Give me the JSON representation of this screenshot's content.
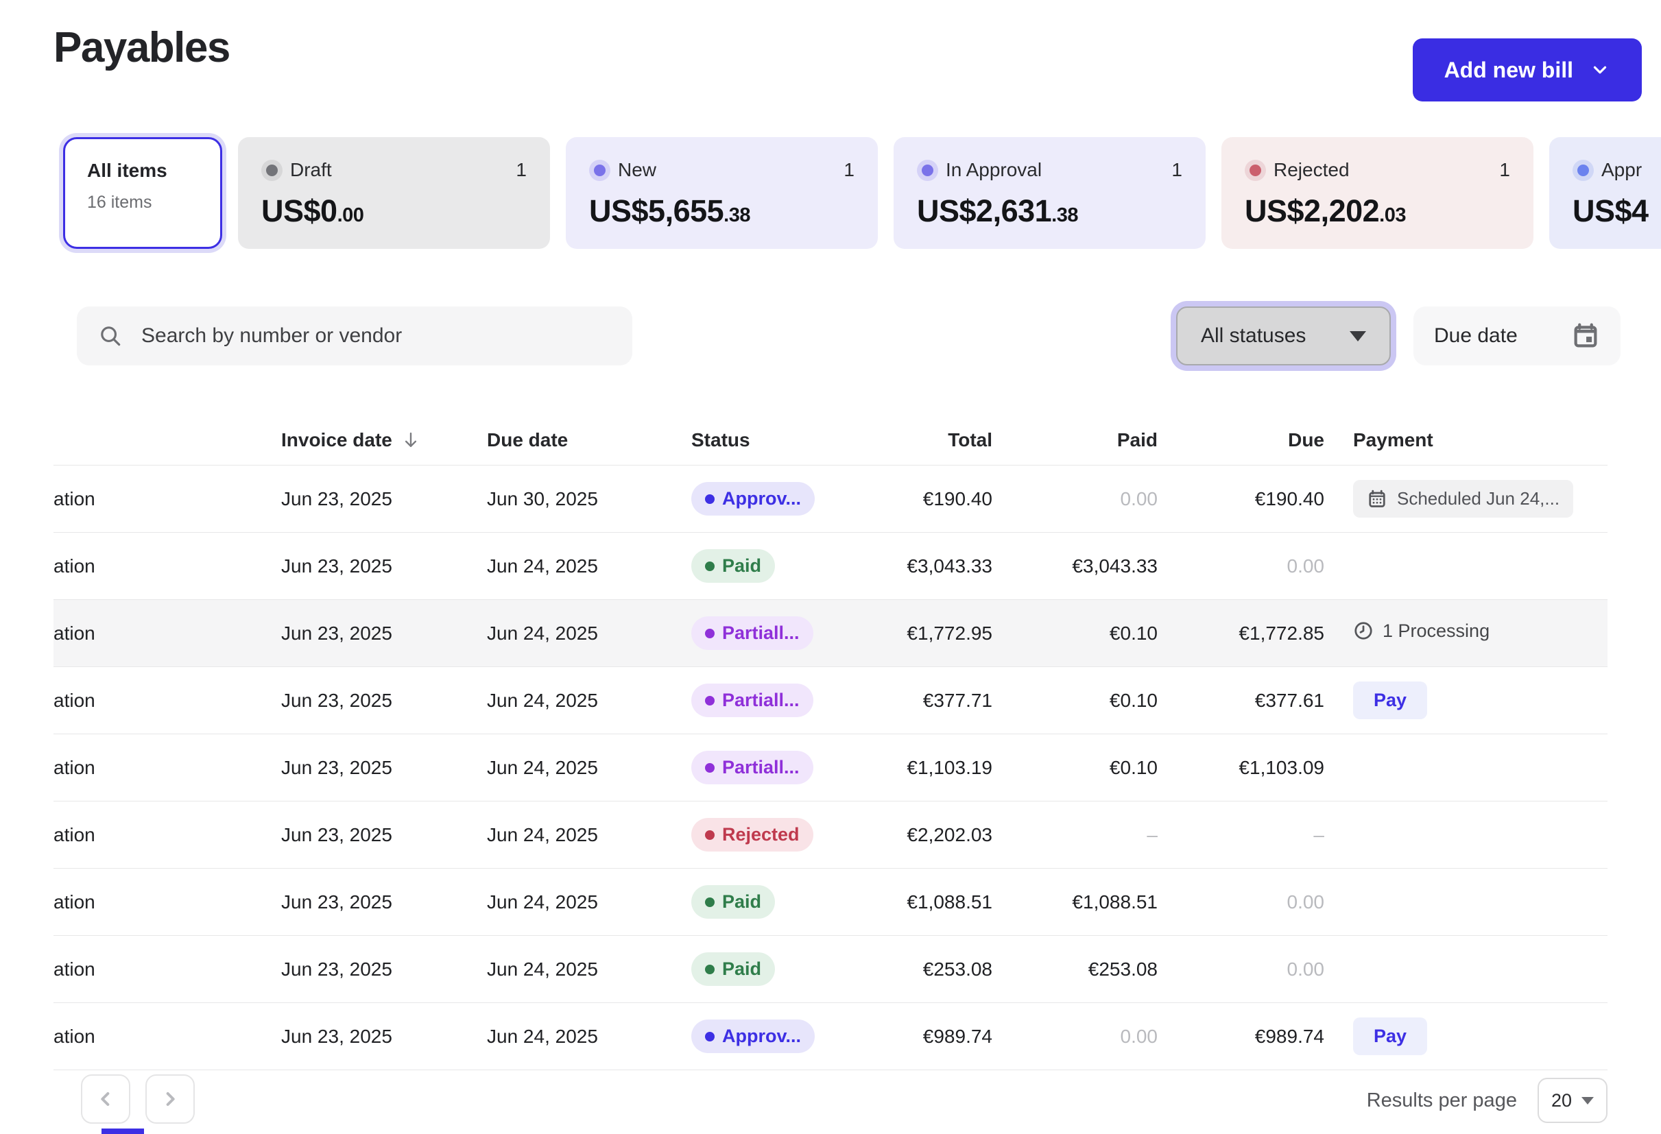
{
  "page_title": "Payables",
  "actions": {
    "add_new_bill": "Add new bill"
  },
  "summary": {
    "all_items": {
      "label": "All items",
      "count_label": "16 items"
    },
    "cards": [
      {
        "id": "draft",
        "label": "Draft",
        "count": "1",
        "amount": "US$0",
        "cents": ".00",
        "theme": "gray"
      },
      {
        "id": "new",
        "label": "New",
        "count": "1",
        "amount": "US$5,655",
        "cents": ".38",
        "theme": "lavender"
      },
      {
        "id": "in-approval",
        "label": "In Approval",
        "count": "1",
        "amount": "US$2,631",
        "cents": ".38",
        "theme": "lavender"
      },
      {
        "id": "rejected",
        "label": "Rejected",
        "count": "1",
        "amount": "US$2,202",
        "cents": ".03",
        "theme": "rose"
      },
      {
        "id": "approved",
        "label": "Appr",
        "count": "",
        "amount": "US$4",
        "cents": "",
        "theme": "blue"
      }
    ]
  },
  "filters": {
    "search_placeholder": "Search by number or vendor",
    "status_dropdown": "All statuses",
    "date_filter": "Due date"
  },
  "table": {
    "headers": {
      "invoice_date": "Invoice date",
      "due_date": "Due date",
      "status": "Status",
      "total": "Total",
      "paid": "Paid",
      "due": "Due",
      "payment": "Payment"
    },
    "rows": [
      {
        "vendor": "ation",
        "invoice_date": "Jun 23, 2025",
        "due_date": "Jun 30, 2025",
        "status": {
          "label": "Approv...",
          "type": "approved"
        },
        "total": "€190.40",
        "paid": {
          "value": "0.00",
          "muted": true
        },
        "due": {
          "value": "€190.40",
          "muted": false
        },
        "payment": {
          "type": "scheduled",
          "label": "Scheduled Jun 24,..."
        },
        "highlight": false
      },
      {
        "vendor": "ation",
        "invoice_date": "Jun 23, 2025",
        "due_date": "Jun 24, 2025",
        "status": {
          "label": "Paid",
          "type": "paid"
        },
        "total": "€3,043.33",
        "paid": {
          "value": "€3,043.33",
          "muted": false
        },
        "due": {
          "value": "0.00",
          "muted": true
        },
        "payment": {
          "type": "none",
          "label": ""
        },
        "highlight": false
      },
      {
        "vendor": "ation",
        "invoice_date": "Jun 23, 2025",
        "due_date": "Jun 24, 2025",
        "status": {
          "label": "Partiall...",
          "type": "partial"
        },
        "total": "€1,772.95",
        "paid": {
          "value": "€0.10",
          "muted": false
        },
        "due": {
          "value": "€1,772.85",
          "muted": false
        },
        "payment": {
          "type": "processing",
          "label": "1 Processing"
        },
        "highlight": true
      },
      {
        "vendor": "ation",
        "invoice_date": "Jun 23, 2025",
        "due_date": "Jun 24, 2025",
        "status": {
          "label": "Partiall...",
          "type": "partial"
        },
        "total": "€377.71",
        "paid": {
          "value": "€0.10",
          "muted": false
        },
        "due": {
          "value": "€377.61",
          "muted": false
        },
        "payment": {
          "type": "pay",
          "label": "Pay"
        },
        "highlight": false
      },
      {
        "vendor": "ation",
        "invoice_date": "Jun 23, 2025",
        "due_date": "Jun 24, 2025",
        "status": {
          "label": "Partiall...",
          "type": "partial"
        },
        "total": "€1,103.19",
        "paid": {
          "value": "€0.10",
          "muted": false
        },
        "due": {
          "value": "€1,103.09",
          "muted": false
        },
        "payment": {
          "type": "none",
          "label": ""
        },
        "highlight": false
      },
      {
        "vendor": "ation",
        "invoice_date": "Jun 23, 2025",
        "due_date": "Jun 24, 2025",
        "status": {
          "label": "Rejected",
          "type": "rejected"
        },
        "total": "€2,202.03",
        "paid": {
          "value": "–",
          "muted": true
        },
        "due": {
          "value": "–",
          "muted": true
        },
        "payment": {
          "type": "none",
          "label": ""
        },
        "highlight": false
      },
      {
        "vendor": "ation",
        "invoice_date": "Jun 23, 2025",
        "due_date": "Jun 24, 2025",
        "status": {
          "label": "Paid",
          "type": "paid"
        },
        "total": "€1,088.51",
        "paid": {
          "value": "€1,088.51",
          "muted": false
        },
        "due": {
          "value": "0.00",
          "muted": true
        },
        "payment": {
          "type": "none",
          "label": ""
        },
        "highlight": false
      },
      {
        "vendor": "ation",
        "invoice_date": "Jun 23, 2025",
        "due_date": "Jun 24, 2025",
        "status": {
          "label": "Paid",
          "type": "paid"
        },
        "total": "€253.08",
        "paid": {
          "value": "€253.08",
          "muted": false
        },
        "due": {
          "value": "0.00",
          "muted": true
        },
        "payment": {
          "type": "none",
          "label": ""
        },
        "highlight": false
      },
      {
        "vendor": "ation",
        "invoice_date": "Jun 23, 2025",
        "due_date": "Jun 24, 2025",
        "status": {
          "label": "Approv...",
          "type": "approved"
        },
        "total": "€989.74",
        "paid": {
          "value": "0.00",
          "muted": true
        },
        "due": {
          "value": "€989.74",
          "muted": false
        },
        "payment": {
          "type": "pay",
          "label": "Pay"
        },
        "highlight": false
      }
    ]
  },
  "pagination": {
    "results_per_page": "Results per page",
    "page_size": "20"
  },
  "colors": {
    "accent": "#3D2FE4",
    "paid": "#2F7D4A",
    "partial": "#8F30D9",
    "rejected": "#BF3A4E"
  }
}
